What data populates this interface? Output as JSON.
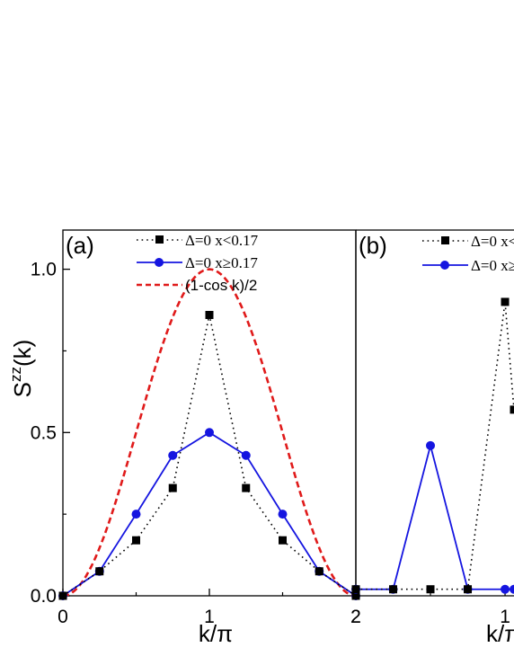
{
  "chart_data": [
    {
      "type": "line",
      "panel_label": "(a)",
      "xlabel": "k/π",
      "ylabel_base": "S",
      "ylabel_sup": "zz",
      "ylabel_tail": "(k)",
      "xlim": [
        0,
        2
      ],
      "ylim": [
        0,
        1.12
      ],
      "x_ticks": [
        0,
        1,
        2
      ],
      "x_tick_labels": [
        "0",
        "1",
        "2"
      ],
      "y_ticks": [
        0.0,
        0.5,
        1.0
      ],
      "y_tick_labels": [
        "0.0",
        "0.5",
        "1.0"
      ],
      "grid": false,
      "legend_position": "top-center",
      "series": [
        {
          "name": "Δ=0 x<0.17",
          "style": "dotted",
          "marker": "square",
          "color": "#000000",
          "x": [
            0,
            0.25,
            0.5,
            0.75,
            1.0,
            1.25,
            1.5,
            1.75,
            2.0
          ],
          "y": [
            0.0,
            0.075,
            0.17,
            0.33,
            0.86,
            0.33,
            0.17,
            0.075,
            0.0
          ]
        },
        {
          "name": "Δ=0 x≥0.17",
          "style": "solid",
          "marker": "circle",
          "color": "#1515e0",
          "x": [
            0,
            0.25,
            0.5,
            0.75,
            1.0,
            1.25,
            1.5,
            1.75,
            2.0
          ],
          "y": [
            0.0,
            0.075,
            0.25,
            0.43,
            0.5,
            0.43,
            0.25,
            0.075,
            0.0
          ]
        },
        {
          "name": "(1-cos k)/2",
          "style": "dashed",
          "marker": "none",
          "color": "#e01a1a",
          "function": "(1-cos(pi x))/2",
          "x_range": [
            0,
            2
          ]
        }
      ]
    },
    {
      "type": "line",
      "panel_label": "(b)",
      "xlabel": "k/π",
      "xlim": [
        2,
        3.06
      ],
      "ylim": [
        0,
        1.12
      ],
      "x_ticks": [
        1
      ],
      "x_tick_labels": [
        "1"
      ],
      "grid": false,
      "legend_position": "top-center",
      "series": [
        {
          "name": "Δ=0 x<",
          "style": "dotted",
          "marker": "square",
          "color": "#000000",
          "x": [
            2.0,
            2.25,
            2.5,
            2.75,
            3.0,
            3.06
          ],
          "y": [
            0.02,
            0.02,
            0.02,
            0.02,
            0.9,
            0.57
          ]
        },
        {
          "name": "Δ=0 x≥",
          "style": "solid",
          "marker": "circle",
          "color": "#1515e0",
          "x": [
            2.0,
            2.25,
            2.5,
            2.75,
            3.0,
            3.06
          ],
          "y": [
            0.02,
            0.02,
            0.46,
            0.02,
            0.02,
            0.02
          ]
        }
      ]
    }
  ]
}
